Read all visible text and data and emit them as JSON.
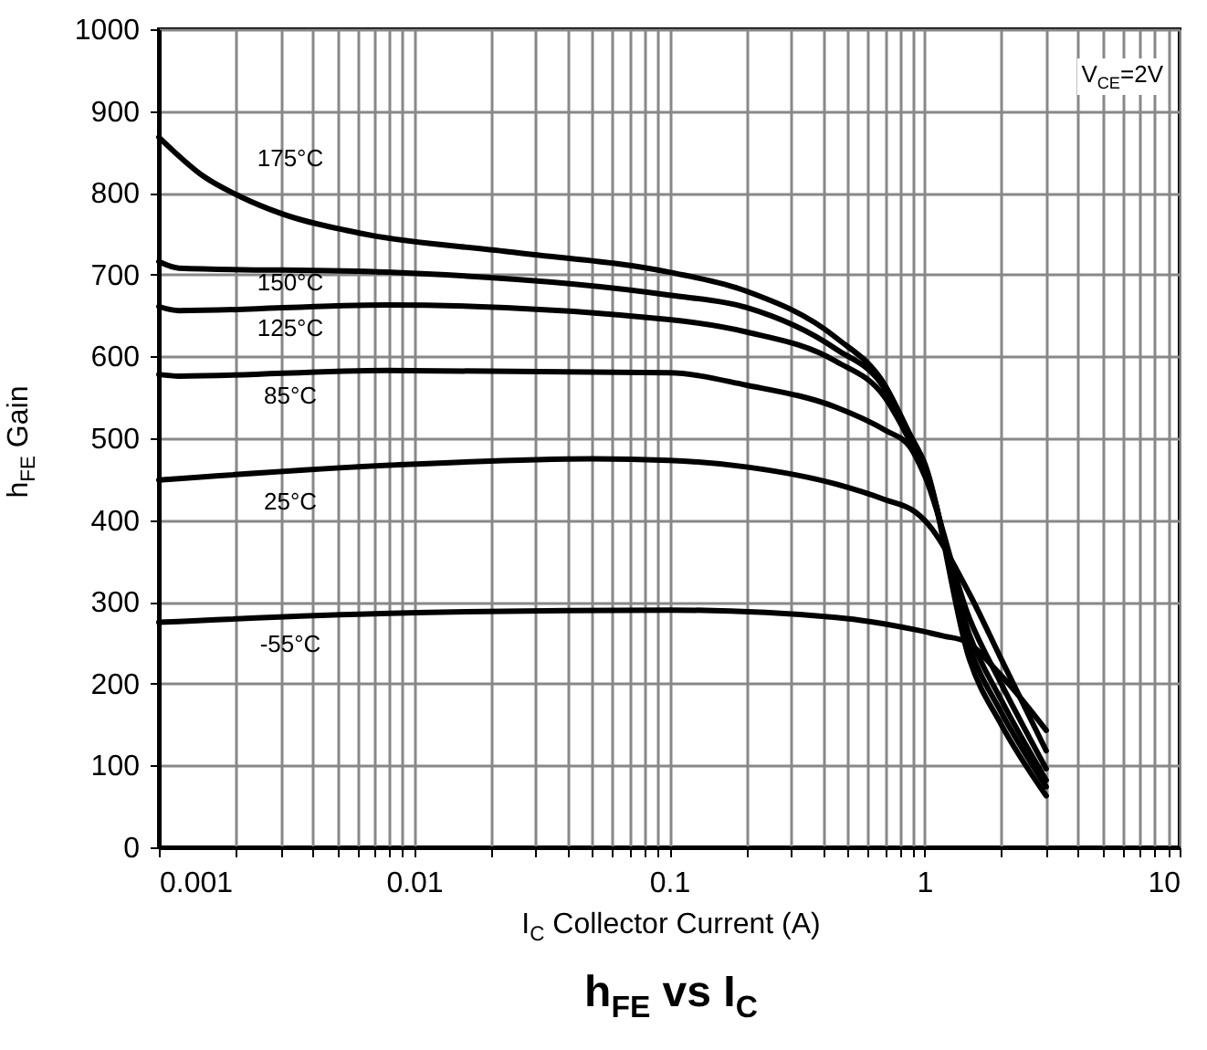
{
  "chart_data": {
    "type": "line",
    "title": "h$_{FE}$ vs I$_{C}$",
    "xlabel": "I$_{C}$ Collector Current (A)",
    "ylabel": "h$_{FE}$ Gain",
    "log": "x",
    "xlim": [
      0.001,
      10
    ],
    "xticks": [
      0.001,
      0.01,
      0.1,
      1,
      10
    ],
    "ylim": [
      0,
      1000
    ],
    "yticks": [
      0,
      100,
      200,
      300,
      400,
      500,
      600,
      700,
      800,
      900,
      {
        "value": 1000,
        "label": "1000"
      }
    ],
    "grid": true,
    "marker": "none",
    "line_style": "solid",
    "series": [
      {
        "name": "175°C",
        "color": "#000000",
        "x": [
          0.001,
          0.0015,
          0.0021,
          0.003,
          0.0063,
          0.0235,
          0.1,
          0.2,
          0.45,
          0.7,
          0.88,
          1.0,
          1.5,
          2,
          3
        ],
        "values": [
          868,
          820,
          795,
          775,
          750,
          728,
          703,
          680,
          623,
          565,
          504,
          470,
          230,
          150,
          63
        ]
      },
      {
        "name": "150°C",
        "color": "#000000",
        "x": [
          0.001,
          0.0012,
          0.0078,
          0.1,
          0.2,
          0.45,
          0.7,
          0.9,
          1.0,
          1.5,
          2,
          3
        ],
        "values": [
          716,
          708,
          703,
          675,
          660,
          609,
          560,
          490,
          465,
          245,
          165,
          74
        ]
      },
      {
        "name": "125°C",
        "color": "#000000",
        "x": [
          0.001,
          0.0012,
          0.0078,
          0.1,
          0.2,
          0.45,
          0.7,
          0.9,
          1.0,
          1.5,
          2,
          3
        ],
        "values": [
          661,
          656,
          663,
          645,
          630,
          594,
          550,
          490,
          462,
          260,
          180,
          82
        ]
      },
      {
        "name": "85°C",
        "color": "#000000",
        "x": [
          0.001,
          0.0012,
          0.0078,
          0.1,
          0.2,
          0.45,
          0.7,
          0.88,
          1.0,
          1.5,
          2,
          3
        ],
        "values": [
          578,
          576,
          583,
          580,
          565,
          538,
          510,
          489,
          455,
          280,
          200,
          96
        ]
      },
      {
        "name": "25°C",
        "color": "#000000",
        "x": [
          0.001,
          0.008,
          0.05,
          0.1,
          0.2,
          0.45,
          0.7,
          0.92,
          1.0,
          1.5,
          2,
          3
        ],
        "values": [
          449,
          467,
          475,
          473,
          465,
          444,
          425,
          410,
          400,
          310,
          230,
          118
        ]
      },
      {
        "name": "-55°C",
        "color": "#000000",
        "x": [
          0.001,
          0.008,
          0.1,
          0.45,
          0.92,
          1.2,
          1.44,
          2,
          3
        ],
        "values": [
          275,
          286,
          290,
          281,
          266,
          258,
          252,
          210,
          143
        ]
      }
    ],
    "annotations": [
      "V$_{CE}$=2V"
    ]
  }
}
